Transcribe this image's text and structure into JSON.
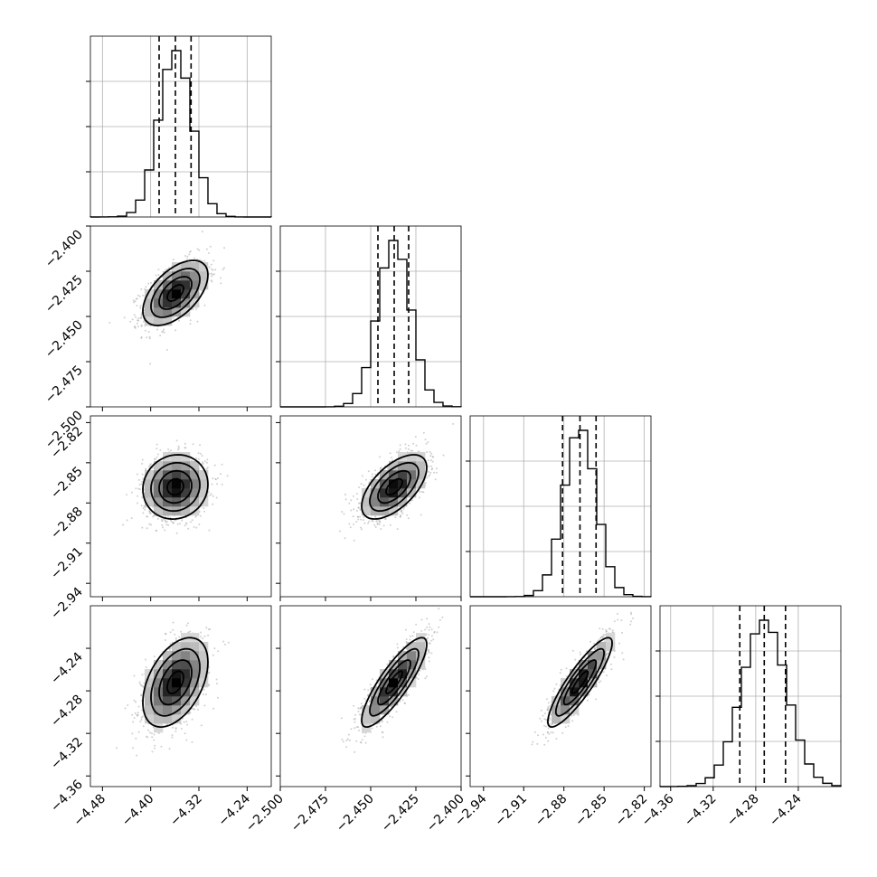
{
  "chart_data": {
    "type": "corner",
    "parameters": [
      {
        "range": [
          -4.5,
          -4.2
        ],
        "ticks": [
          -4.48,
          -4.4,
          -4.32,
          -4.24
        ],
        "tick_labels": [
          "−4.48",
          "−4.40",
          "−4.32",
          "−4.24"
        ],
        "quantiles": [
          -4.386,
          -4.359,
          -4.333
        ],
        "mean": -4.359,
        "sd": 0.027
      },
      {
        "range": [
          -2.5,
          -2.4
        ],
        "ticks": [
          -2.5,
          -2.475,
          -2.45,
          -2.425,
          -2.4
        ],
        "tick_labels": [
          "−2.500",
          "−2.475",
          "−2.450",
          "−2.425",
          "−2.400"
        ],
        "quantiles": [
          -2.446,
          -2.437,
          -2.429
        ],
        "mean": -2.437,
        "sd": 0.009
      },
      {
        "range": [
          -2.95,
          -2.815
        ],
        "ticks": [
          -2.94,
          -2.91,
          -2.88,
          -2.85,
          -2.82
        ],
        "tick_labels": [
          "−2.94",
          "−2.91",
          "−2.88",
          "−2.85",
          "−2.82"
        ],
        "quantiles": [
          -2.881,
          -2.868,
          -2.856
        ],
        "mean": -2.868,
        "sd": 0.012
      },
      {
        "range": [
          -4.37,
          -4.2
        ],
        "ticks": [
          -4.36,
          -4.32,
          -4.28,
          -4.24
        ],
        "tick_labels": [
          "−4.36",
          "−4.32",
          "−4.28",
          "−4.24"
        ],
        "quantiles": [
          -4.295,
          -4.272,
          -4.252
        ],
        "mean": -4.272,
        "sd": 0.021
      }
    ],
    "correlations": {
      "1-0": 0.55,
      "2-0": 0.08,
      "2-1": 0.6,
      "3-0": 0.45,
      "3-1": 0.85,
      "3-2": 0.88
    },
    "contour_levels_sigma": [
      0.5,
      1.0,
      1.5,
      2.0
    ],
    "quantile_line_style": "dashed",
    "grid": true,
    "colors": {
      "line": "#000000",
      "points": "#a9a9a9",
      "grid": "#b0b0b0",
      "frame": "#000000"
    }
  }
}
